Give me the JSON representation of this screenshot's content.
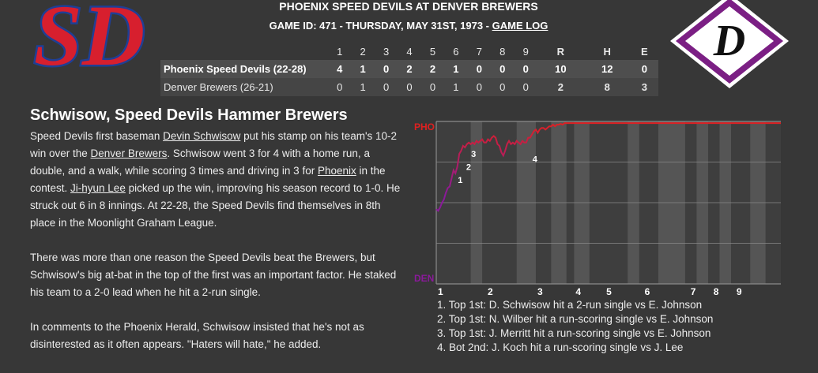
{
  "header": {
    "title": "PHOENIX SPEED DEVILS AT DENVER BREWERS",
    "game_id": "GAME ID: 471 - THURSDAY, MAY 31ST, 1973 -",
    "game_log_link": "GAME LOG"
  },
  "logos": {
    "away_text": "SD",
    "home_text": "D",
    "away_colors": {
      "fill": "#d71f2e",
      "outline": "#1f3f95"
    },
    "home_colors": {
      "diamond": "#7b1f84",
      "inner": "#ffffff",
      "letter": "#111111"
    }
  },
  "linescore": {
    "innings": [
      "1",
      "2",
      "3",
      "4",
      "5",
      "6",
      "7",
      "8",
      "9"
    ],
    "totals_headers": [
      "R",
      "H",
      "E"
    ],
    "away": {
      "team": "Phoenix Speed Devils (22-28)",
      "innings": [
        "4",
        "1",
        "0",
        "2",
        "2",
        "1",
        "0",
        "0",
        "0"
      ],
      "totals": [
        "10",
        "12",
        "0"
      ]
    },
    "home": {
      "team": "Denver Brewers (26-21)",
      "innings": [
        "0",
        "1",
        "0",
        "0",
        "0",
        "1",
        "0",
        "0",
        "0"
      ],
      "totals": [
        "2",
        "8",
        "3"
      ]
    }
  },
  "story": {
    "title": "Schwisow, Speed Devils Hammer Brewers",
    "p1": {
      "t1": "Speed Devils first baseman ",
      "l1": "Devin Schwisow",
      "t2": " put his stamp on his team's 10-2 win over the ",
      "l2": "Denver Brewers",
      "t3": ". Schwisow went 3 for 4 with a home run, a double, and a walk, while scoring 3 times and driving in 3 for ",
      "l3": "Phoenix",
      "t4": " in the contest. ",
      "l4": "Ji-hyun Lee",
      "t5": " picked up the win, improving his season record to 1-0. He struck out 6 in 8 innings. At 22-28, the Speed Devils find themselves in 8th place in the Moonlight Graham League."
    },
    "p2": "There was more than one reason the Speed Devils beat the Brewers, but Schwisow's big at-bat in the top of the first was an important factor. He staked his team to a 2-0 lead when he hit a 2-run single.",
    "p3": "In comments to the Phoenix Herald, Schwisow insisted that he's not as disinterested as it often appears. \"Haters will hate,\" he added."
  },
  "chart_data": {
    "type": "line",
    "title": "",
    "top_label": "PHO",
    "bottom_label": "DEN",
    "innings": [
      "1",
      "2",
      "3",
      "4",
      "5",
      "6",
      "7",
      "8",
      "9"
    ],
    "ylim": [
      0,
      1
    ],
    "colors": {
      "away": "#e02020",
      "home": "#8a1a9a",
      "band": "#555555",
      "plot_bg": "#3e3e3e",
      "grid": "#8a8a8a"
    },
    "x": [
      0,
      0.05,
      0.1,
      0.15,
      0.2,
      0.25,
      0.3,
      0.35,
      0.4,
      0.45,
      0.5,
      0.55,
      0.6,
      0.65,
      0.7,
      0.75,
      0.8,
      0.85,
      0.9,
      0.95,
      1,
      1.05,
      1.1,
      1.15,
      1.2,
      1.25,
      1.3,
      1.35,
      1.4,
      1.45,
      1.5,
      1.55,
      1.6,
      1.65,
      1.7,
      1.75,
      1.8,
      1.85,
      1.9,
      1.95,
      2,
      2.05,
      2.1,
      2.15,
      2.2,
      2.25,
      2.3,
      2.35,
      2.4,
      2.45,
      2.5,
      2.55,
      2.6,
      2.65,
      2.7,
      2.75,
      2.8,
      2.85,
      2.9,
      2.95,
      3,
      3.05,
      3.1,
      3.15,
      3.2,
      3.25,
      3.3,
      3.35,
      3.4,
      3.45,
      3.5,
      3.55,
      3.6,
      3.65,
      3.7,
      3.75,
      3.8,
      3.85,
      3.9,
      3.95,
      4,
      4.05,
      4.1,
      4.15,
      4.2,
      4.25,
      4.3,
      4.35,
      4.4,
      4.45,
      4.5,
      4.55,
      4.6,
      4.65,
      4.7,
      4.75,
      4.8,
      4.85,
      4.9,
      4.95,
      5,
      5.1,
      5.2,
      5.3,
      5.4,
      5.5,
      5.6,
      5.7,
      5.8,
      5.9,
      6,
      6.1,
      6.2,
      6.3,
      6.4,
      6.5,
      6.6,
      6.7,
      6.8,
      6.9,
      7,
      7.1,
      7.2,
      7.3,
      7.4,
      7.5,
      7.6,
      7.7,
      7.8,
      7.9,
      8,
      8.1,
      8.2,
      8.3,
      8.4,
      8.5,
      8.6,
      8.7,
      8.8,
      8.9,
      9
    ],
    "y": [
      0.46,
      0.45,
      0.47,
      0.5,
      0.52,
      0.56,
      0.59,
      0.6,
      0.65,
      0.7,
      0.68,
      0.72,
      0.8,
      0.82,
      0.85,
      0.84,
      0.86,
      0.87,
      0.86,
      0.87,
      0.86,
      0.88,
      0.87,
      0.88,
      0.89,
      0.87,
      0.87,
      0.89,
      0.88,
      0.9,
      0.91,
      0.9,
      0.86,
      0.85,
      0.81,
      0.79,
      0.82,
      0.86,
      0.88,
      0.86,
      0.87,
      0.86,
      0.88,
      0.87,
      0.86,
      0.88,
      0.87,
      0.87,
      0.9,
      0.9,
      0.92,
      0.94,
      0.95,
      0.93,
      0.95,
      0.96,
      0.96,
      0.95,
      0.96,
      0.97,
      0.97,
      0.98,
      0.97,
      0.98,
      0.98,
      0.985,
      0.98,
      0.99,
      0.99,
      0.99,
      0.99,
      0.99,
      0.99,
      0.99,
      0.99,
      0.99,
      0.99,
      0.99,
      0.99,
      0.99,
      0.99,
      0.99,
      0.99,
      0.99,
      0.99,
      0.99,
      0.99,
      0.99,
      0.99,
      0.99,
      0.99,
      0.99,
      0.99,
      0.99,
      0.99,
      0.99,
      0.99,
      0.99,
      0.99,
      0.99,
      0.99,
      0.99,
      0.99,
      0.99,
      0.99,
      0.99,
      0.99,
      0.99,
      0.99,
      0.99,
      0.99,
      0.99,
      0.99,
      0.99,
      0.99,
      0.99,
      0.99,
      0.99,
      0.99,
      0.99,
      0.99,
      0.99,
      0.99,
      0.99,
      0.99,
      0.99,
      0.99,
      0.99,
      0.99,
      0.99,
      0.99,
      0.99,
      0.99,
      0.99,
      0.99,
      0.99,
      0.99,
      0.99,
      0.99,
      0.99,
      0.99
    ],
    "inning_x": [
      0,
      1.3,
      2.6,
      3.6,
      4.4,
      5.4,
      6.6,
      7.2,
      7.8
    ],
    "bands": [
      [
        0.9,
        1.2
      ],
      [
        2.1,
        2.6
      ],
      [
        3.0,
        3.4
      ],
      [
        3.6,
        4.0
      ],
      [
        5.0,
        5.3
      ],
      [
        5.8,
        6.5
      ],
      [
        6.8,
        7.1
      ],
      [
        7.4,
        7.7
      ],
      [
        8.2,
        8.6
      ]
    ],
    "annotations": [
      {
        "label": "1",
        "x": 0.5,
        "y": 0.64
      },
      {
        "label": "2",
        "x": 0.72,
        "y": 0.72
      },
      {
        "label": "3",
        "x": 0.85,
        "y": 0.8
      },
      {
        "label": "4",
        "x": 2.45,
        "y": 0.77
      }
    ]
  },
  "notes": [
    "1. Top 1st: D. Schwisow hit a 2-run single vs E. Johnson",
    "2. Top 1st: N. Wilber hit a run-scoring single vs E. Johnson",
    "3. Top 1st: J. Merritt hit a run-scoring single vs E. Johnson",
    "4. Bot 2nd: J. Koch hit a run-scoring single vs J. Lee"
  ]
}
